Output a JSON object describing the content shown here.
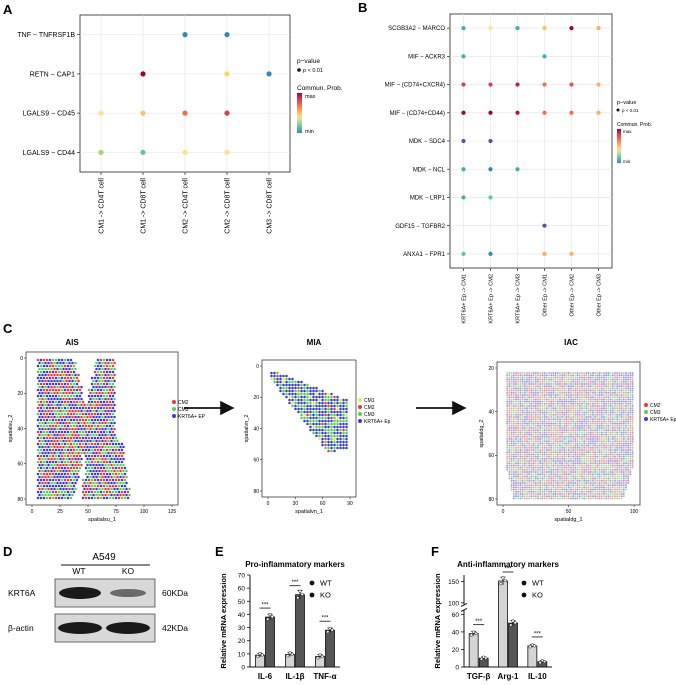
{
  "panel_labels": {
    "A": "A",
    "B": "B",
    "C": "C",
    "D": "D",
    "E": "E",
    "F": "F"
  },
  "legend_text": {
    "pvalue_title": "p−value",
    "pvalue_item": "p < 0.01",
    "comm_title": "Commun. Prob.",
    "max": "max",
    "min": "min"
  },
  "colors": {
    "dark_red": "#9e0142",
    "red": "#d53e4f",
    "orange": "#f46d43",
    "light_orange": "#fdae61",
    "yellow": "#fee08b",
    "light_green": "#d9ef8b",
    "green": "#66c2a5",
    "teal": "#3ab0b8",
    "blue": "#3288bd",
    "purple": "#5e4fa2",
    "grid_line": "#e2e2e2",
    "bar_wt": "#d4d4d4",
    "bar_ko": "#555555",
    "spot_cm1": "#e8e85a",
    "spot_cm2": "#e83a3a",
    "spot_cm3": "#55d055",
    "spot_ep": "#3a3ad8"
  },
  "panel_a": {
    "rows": [
      "TNF − TNFRSF1B",
      "RETN − CAP1",
      "LGALS9 − CD45",
      "LGALS9 − CD44"
    ],
    "cols": [
      "CM1 -> CD4T cell",
      "CM1 -> CD8T cell",
      "CM2 -> CD4T cell",
      "CM2 -> CD8T cell",
      "CM3 -> CD8T cell"
    ],
    "dots": [
      {
        "row": 0,
        "col": 2,
        "color": "#3288bd"
      },
      {
        "row": 0,
        "col": 3,
        "color": "#3288bd"
      },
      {
        "row": 1,
        "col": 1,
        "color": "#9e0142"
      },
      {
        "row": 1,
        "col": 3,
        "color": "#fdd562"
      },
      {
        "row": 1,
        "col": 4,
        "color": "#3288bd"
      },
      {
        "row": 2,
        "col": 0,
        "color": "#fee08b"
      },
      {
        "row": 2,
        "col": 1,
        "color": "#fdbf5f"
      },
      {
        "row": 2,
        "col": 2,
        "color": "#f46d43"
      },
      {
        "row": 2,
        "col": 3,
        "color": "#d53e4f"
      },
      {
        "row": 3,
        "col": 0,
        "color": "#a6d96a"
      },
      {
        "row": 3,
        "col": 1,
        "color": "#66c2a5"
      },
      {
        "row": 3,
        "col": 2,
        "color": "#fee08b"
      },
      {
        "row": 3,
        "col": 3,
        "color": "#fee08b"
      }
    ]
  },
  "panel_b": {
    "rows": [
      "SCGB3A2 − MARCO",
      "MIF − ACKR3",
      "MIF − (CD74+CXCR4)",
      "MIF − (CD74+CD44)",
      "MDK − SDC4",
      "MDK − NCL",
      "MDK − LRP1",
      "GDF15 − TGFBR2",
      "ANXA1 − FPR1"
    ],
    "cols": [
      "KRT6A+ Ep -> CM1",
      "KRT6A+ Ep -> CM2",
      "KRT6A+ Ep -> CM3",
      "Other Ep -> CM1",
      "Other Ep -> CM2",
      "Other Ep -> CM3"
    ],
    "dots": [
      {
        "row": 0,
        "col": 0,
        "color": "#3ab0b8"
      },
      {
        "row": 0,
        "col": 1,
        "color": "#fee08b"
      },
      {
        "row": 0,
        "col": 2,
        "color": "#3ab0b8"
      },
      {
        "row": 0,
        "col": 3,
        "color": "#fdbf5f"
      },
      {
        "row": 0,
        "col": 4,
        "color": "#9e0142"
      },
      {
        "row": 0,
        "col": 5,
        "color": "#fdae61"
      },
      {
        "row": 1,
        "col": 0,
        "color": "#3ab0b8"
      },
      {
        "row": 1,
        "col": 3,
        "color": "#3ab0b8"
      },
      {
        "row": 2,
        "col": 0,
        "color": "#d53e4f"
      },
      {
        "row": 2,
        "col": 1,
        "color": "#d53e4f"
      },
      {
        "row": 2,
        "col": 2,
        "color": "#c2185b"
      },
      {
        "row": 2,
        "col": 3,
        "color": "#f46d43"
      },
      {
        "row": 2,
        "col": 4,
        "color": "#e8553e"
      },
      {
        "row": 2,
        "col": 5,
        "color": "#fdae61"
      },
      {
        "row": 3,
        "col": 0,
        "color": "#9e0142"
      },
      {
        "row": 3,
        "col": 1,
        "color": "#9e0142"
      },
      {
        "row": 3,
        "col": 2,
        "color": "#b2183c"
      },
      {
        "row": 3,
        "col": 3,
        "color": "#f46d43"
      },
      {
        "row": 3,
        "col": 4,
        "color": "#f46d43"
      },
      {
        "row": 3,
        "col": 5,
        "color": "#fdae61"
      },
      {
        "row": 4,
        "col": 0,
        "color": "#5e4fa2"
      },
      {
        "row": 4,
        "col": 1,
        "color": "#5e4fa2"
      },
      {
        "row": 5,
        "col": 0,
        "color": "#3ab0b8"
      },
      {
        "row": 5,
        "col": 1,
        "color": "#3288bd"
      },
      {
        "row": 5,
        "col": 2,
        "color": "#3ab0b8"
      },
      {
        "row": 6,
        "col": 0,
        "color": "#3ab0b8"
      },
      {
        "row": 6,
        "col": 1,
        "color": "#66c2a5"
      },
      {
        "row": 7,
        "col": 3,
        "color": "#5e4fa2"
      },
      {
        "row": 8,
        "col": 0,
        "color": "#66c2a5"
      },
      {
        "row": 8,
        "col": 1,
        "color": "#3288bd"
      },
      {
        "row": 8,
        "col": 3,
        "color": "#fdae61"
      },
      {
        "row": 8,
        "col": 4,
        "color": "#fdae61"
      }
    ]
  },
  "panel_c": {
    "ais": {
      "title": "AIS",
      "xlabel": "spatialsu_1",
      "ylabel": "spatialsu_2",
      "xticks": [
        "0",
        "25",
        "50",
        "75",
        "100",
        "125"
      ],
      "yticks": [
        "0",
        "20",
        "40",
        "60",
        "80"
      ],
      "legend": [
        "CM2",
        "CM3",
        "KRT6A+ EP"
      ]
    },
    "mia": {
      "title": "MIA",
      "xlabel": "spatialvn_1",
      "ylabel": "spatialvn_2",
      "xticks": [
        "0",
        "30",
        "60",
        "90"
      ],
      "yticks": [
        "0",
        "20",
        "40",
        "60",
        "80"
      ],
      "legend": [
        "CM1",
        "CM2",
        "CM3",
        "KRT6A+ Ep"
      ]
    },
    "iac": {
      "title": "IAC",
      "xlabel": "spatialdg_1",
      "ylabel": "spatialdg_2",
      "xticks": [
        "0",
        "50",
        "100"
      ],
      "yticks": [
        "20",
        "40",
        "60",
        "80"
      ],
      "legend": [
        "CM2",
        "CM3",
        "KRT6A+ Ep"
      ]
    }
  },
  "panel_d": {
    "cell_line": "A549",
    "lanes": [
      "WT",
      "KO"
    ],
    "rows": [
      {
        "protein": "KRT6A",
        "size": "60KDa"
      },
      {
        "protein": "β-actin",
        "size": "42KDa"
      }
    ]
  },
  "chart_data": [
    {
      "type": "bar",
      "title": "Pro-inflammatory markers",
      "categories": [
        "IL-6",
        "IL-1β",
        "TNF-α"
      ],
      "series": [
        {
          "name": "WT",
          "values": [
            9,
            9.5,
            8
          ]
        },
        {
          "name": "KO",
          "values": [
            38,
            55,
            28
          ]
        }
      ],
      "significance": [
        "***",
        "***",
        "***"
      ],
      "ylabel": "Relative mRNA expression",
      "yticks": [
        0,
        10,
        20,
        30,
        40,
        50,
        60,
        70
      ],
      "ylim": [
        0,
        70
      ]
    },
    {
      "type": "bar",
      "title": "Anti-inflammatory markers",
      "categories": [
        "TGF-β",
        "Arg-1",
        "IL-10"
      ],
      "series": [
        {
          "name": "WT",
          "values": [
            38,
            151,
            24
          ]
        },
        {
          "name": "KO",
          "values": [
            10,
            50,
            6
          ]
        }
      ],
      "significance": [
        "***",
        "***",
        "***"
      ],
      "ylabel": "Relative mRNA expression",
      "yticks": [
        0,
        20,
        40,
        60,
        100,
        150
      ],
      "axis_break": [
        65,
        95
      ],
      "ylim": [
        0,
        165
      ]
    }
  ]
}
